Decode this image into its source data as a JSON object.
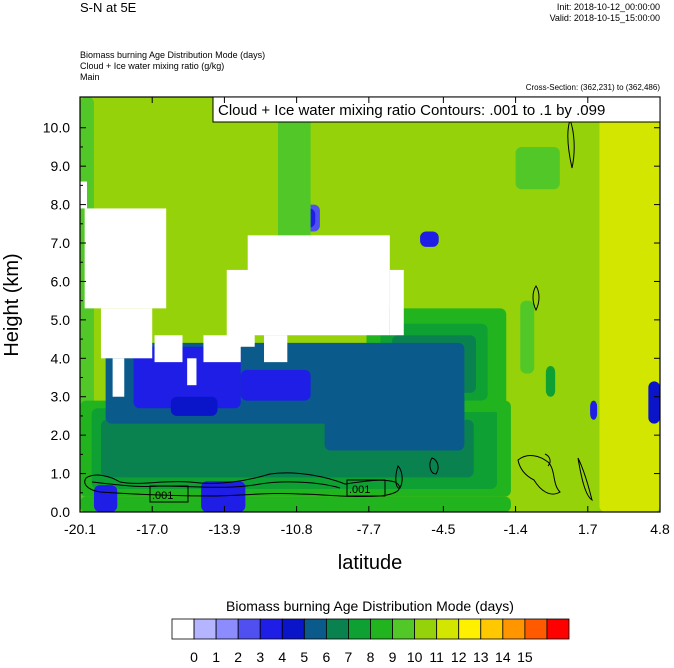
{
  "header": {
    "title": "S-N at 5E",
    "init": "Init: 2018-10-12_00:00:00",
    "valid": "Valid: 2018-10-15_15:00:00",
    "field_lines": [
      "Biomass burning Age Distribution Mode   (days)",
      "Cloud + Ice water mixing ratio   (g/kg)",
      "Main"
    ],
    "cross_section": "Cross-Section: (362,231) to (362,486)"
  },
  "chart_data": {
    "type": "heatmap",
    "title": "",
    "xlabel": "latitude",
    "ylabel": "Height (km)",
    "x_ticks": [
      "-20.1",
      "-17.0",
      "-13.9",
      "-10.8",
      "-7.7",
      "-4.5",
      "-1.4",
      "1.7",
      "4.8"
    ],
    "x_tick_values": [
      -20.1,
      -17.0,
      -13.9,
      -10.8,
      -7.7,
      -4.5,
      -1.4,
      1.7,
      4.8
    ],
    "y_ticks": [
      "0.0",
      "1.0",
      "2.0",
      "3.0",
      "4.0",
      "5.0",
      "6.0",
      "7.0",
      "8.0",
      "9.0",
      "10.0"
    ],
    "y_tick_values": [
      0,
      1,
      2,
      3,
      4,
      5,
      6,
      7,
      8,
      9,
      10
    ],
    "xlim": [
      -20.1,
      4.8
    ],
    "ylim": [
      0,
      10.8
    ],
    "background_level": 11,
    "regions": [
      {
        "level": 10,
        "x": [
          -20.1,
          -19.5
        ],
        "y": [
          0,
          10.8
        ]
      },
      {
        "level": 12,
        "x": [
          2.2,
          4.8
        ],
        "y": [
          0,
          10.8
        ]
      },
      {
        "level": 9,
        "x": [
          -20.1,
          -1.6
        ],
        "y": [
          0.4,
          2.9
        ]
      },
      {
        "level": 8,
        "x": [
          -19.6,
          -2.2
        ],
        "y": [
          0.6,
          2.7
        ]
      },
      {
        "level": 7,
        "x": [
          -19.2,
          -3.2
        ],
        "y": [
          0.9,
          2.4
        ]
      },
      {
        "level": 9,
        "x": [
          -7.8,
          -1.8
        ],
        "y": [
          2.6,
          5.3
        ]
      },
      {
        "level": 8,
        "x": [
          -7.2,
          -2.6
        ],
        "y": [
          2.9,
          4.9
        ]
      },
      {
        "level": 7,
        "x": [
          -6.7,
          -3.1
        ],
        "y": [
          3.1,
          4.6
        ]
      },
      {
        "level": 6,
        "x": [
          -19.0,
          -3.6
        ],
        "y": [
          2.3,
          4.4
        ]
      },
      {
        "level": 6,
        "x": [
          -9.6,
          -3.6
        ],
        "y": [
          1.6,
          3.1
        ]
      },
      {
        "level": 4,
        "x": [
          -17.8,
          -13.2
        ],
        "y": [
          2.7,
          4.3
        ]
      },
      {
        "level": 4,
        "x": [
          -13.2,
          -10.2
        ],
        "y": [
          2.9,
          3.7
        ]
      },
      {
        "level": 5,
        "x": [
          -16.2,
          -14.2
        ],
        "y": [
          2.5,
          3.0
        ]
      },
      {
        "level": 9,
        "x": [
          -20.1,
          -1.6
        ],
        "y": [
          0,
          0.4
        ]
      },
      {
        "level": 4,
        "x": [
          -19.5,
          -18.5
        ],
        "y": [
          0,
          0.7
        ]
      },
      {
        "level": 4,
        "x": [
          -14.9,
          -13.0
        ],
        "y": [
          0,
          0.8
        ]
      },
      {
        "level": 3,
        "x": [
          -10.8,
          -9.8
        ],
        "y": [
          7.3,
          8.0
        ]
      },
      {
        "level": 4,
        "x": [
          -10.6,
          -10.0
        ],
        "y": [
          7.4,
          7.9
        ]
      },
      {
        "level": 4,
        "x": [
          -5.5,
          -4.7
        ],
        "y": [
          6.9,
          7.3
        ]
      },
      {
        "level": 10,
        "x": [
          -11.6,
          -10.2
        ],
        "y": [
          6.6,
          10.8
        ]
      },
      {
        "level": 10,
        "x": [
          -1.4,
          0.5
        ],
        "y": [
          8.4,
          9.5
        ]
      },
      {
        "level": 10,
        "x": [
          -1.2,
          -0.6
        ],
        "y": [
          3.6,
          5.5
        ]
      },
      {
        "level": 8,
        "x": [
          -0.1,
          0.3
        ],
        "y": [
          3.0,
          3.8
        ]
      },
      {
        "level": 4,
        "x": [
          1.8,
          2.1
        ],
        "y": [
          2.4,
          2.9
        ]
      },
      {
        "level": 5,
        "x": [
          4.3,
          4.8
        ],
        "y": [
          2.3,
          3.4
        ]
      }
    ],
    "missing_regions": [
      {
        "x": [
          -20.1,
          -19.8
        ],
        "y": [
          7.9,
          8.6
        ]
      },
      {
        "x": [
          -19.9,
          -16.4
        ],
        "y": [
          5.3,
          7.9
        ]
      },
      {
        "x": [
          -19.2,
          -17.0
        ],
        "y": [
          4.0,
          5.3
        ]
      },
      {
        "x": [
          -18.7,
          -18.2
        ],
        "y": [
          3.0,
          4.0
        ]
      },
      {
        "x": [
          -16.9,
          -15.7
        ],
        "y": [
          3.9,
          4.6
        ]
      },
      {
        "x": [
          -15.5,
          -15.1
        ],
        "y": [
          3.3,
          4.0
        ]
      },
      {
        "x": [
          -14.8,
          -13.2
        ],
        "y": [
          3.9,
          4.6
        ]
      },
      {
        "x": [
          -13.8,
          -12.6
        ],
        "y": [
          4.3,
          6.3
        ]
      },
      {
        "x": [
          -12.9,
          -6.8
        ],
        "y": [
          4.6,
          7.2
        ]
      },
      {
        "x": [
          -12.2,
          -11.2
        ],
        "y": [
          3.9,
          4.6
        ]
      },
      {
        "x": [
          -6.8,
          -6.2
        ],
        "y": [
          4.6,
          6.3
        ]
      }
    ],
    "colorbar": {
      "title": "Biomass burning Age Distribution Mode  (days)",
      "labels": [
        "0",
        "1",
        "2",
        "3",
        "4",
        "5",
        "6",
        "7",
        "8",
        "9",
        "10",
        "11",
        "12",
        "13",
        "14",
        "15"
      ],
      "colors": [
        "#ffffff",
        "#b4b4ff",
        "#8c8cff",
        "#5050f0",
        "#1e1ee6",
        "#0a14c8",
        "#0a5a8c",
        "#0a8250",
        "#0ea032",
        "#22b41e",
        "#52c828",
        "#96d20a",
        "#d2e600",
        "#fff000",
        "#ffc800",
        "#ff9600",
        "#ff5a00",
        "#ff0000"
      ]
    },
    "contours": {
      "variable": "Cloud + Ice water mixing ratio",
      "label_box": "Cloud + Ice water mixing ratio Contours: .001 to .1 by .099",
      "levels": [
        0.001,
        0.1
      ],
      "line_labels": [
        ".001",
        ".001"
      ]
    }
  }
}
